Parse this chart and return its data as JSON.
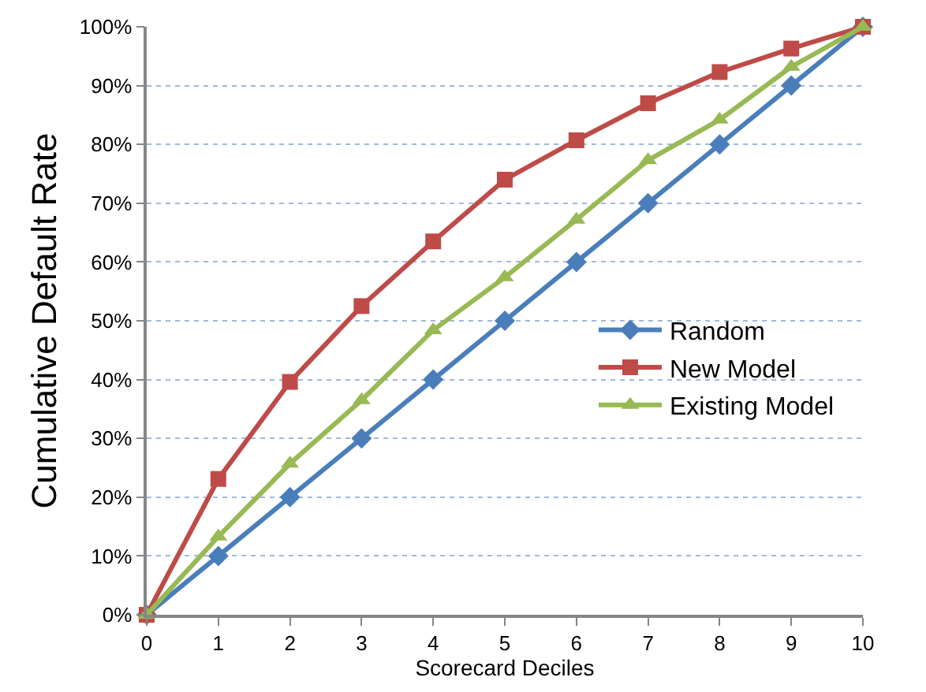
{
  "chart_data": {
    "type": "line",
    "xlabel": "Scorecard Deciles",
    "ylabel": "Cumulative Default Rate",
    "x": [
      0,
      1,
      2,
      3,
      4,
      5,
      6,
      7,
      8,
      9,
      10
    ],
    "xlim": [
      0,
      10
    ],
    "xticks": [
      0,
      1,
      2,
      3,
      4,
      5,
      6,
      7,
      8,
      9,
      10
    ],
    "ylim": [
      0,
      100
    ],
    "yticks": [
      {
        "value": 0,
        "label": "0%"
      },
      {
        "value": 10,
        "label": "10%"
      },
      {
        "value": 20,
        "label": "20%"
      },
      {
        "value": 30,
        "label": "30%"
      },
      {
        "value": 40,
        "label": "40%"
      },
      {
        "value": 50,
        "label": "50%"
      },
      {
        "value": 60,
        "label": "60%"
      },
      {
        "value": 70,
        "label": "70%"
      },
      {
        "value": 80,
        "label": "80%"
      },
      {
        "value": 90,
        "label": "90%"
      },
      {
        "value": 100,
        "label": "100%"
      }
    ],
    "grid": "y",
    "legend": "right",
    "line_style": "solid",
    "series": [
      {
        "name": "Random",
        "color": "#4a7ebb",
        "marker": "diamond",
        "values": [
          0,
          10,
          20,
          30,
          40,
          50,
          60,
          70,
          80,
          90,
          100
        ]
      },
      {
        "name": "New Model",
        "color": "#be4b48",
        "marker": "square",
        "values": [
          0,
          23.1,
          39.6,
          52.5,
          63.5,
          74.0,
          80.7,
          87.0,
          92.3,
          96.3,
          100
        ]
      },
      {
        "name": "Existing Model",
        "color": "#98b954",
        "marker": "triangle",
        "values": [
          0,
          13.3,
          25.7,
          36.5,
          48.4,
          57.4,
          67.2,
          77.3,
          84.2,
          93.2,
          100
        ]
      }
    ]
  }
}
